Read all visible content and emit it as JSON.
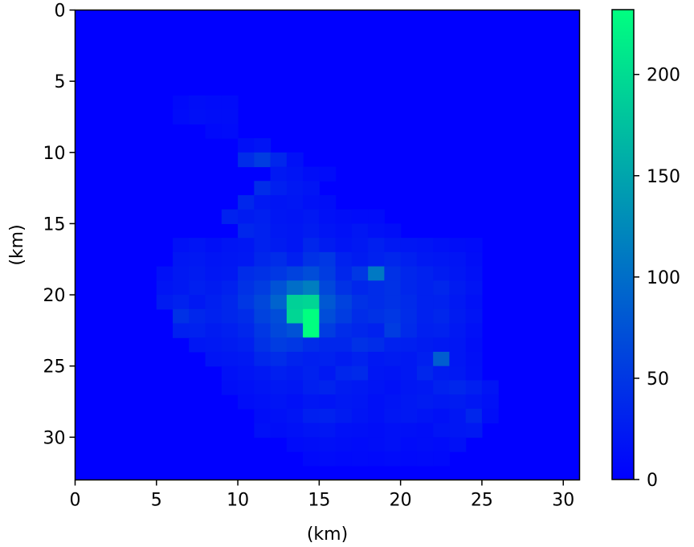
{
  "chart_data": {
    "type": "heatmap",
    "title": "",
    "xlabel": "(km)",
    "ylabel": "(km)",
    "xlim": [
      0,
      31
    ],
    "ylim": [
      33,
      0
    ],
    "x_ticks": [
      "0",
      "5",
      "10",
      "15",
      "20",
      "25",
      "30"
    ],
    "y_ticks": [
      "0",
      "5",
      "10",
      "15",
      "20",
      "25",
      "30"
    ],
    "grid_cols": 31,
    "grid_rows": 33,
    "colormap": "winter",
    "colormap_stops": [
      "#0000ff",
      "#00ff80"
    ],
    "colorbar": {
      "vmin": 0,
      "vmax": 232,
      "ticks": [
        "0",
        "50",
        "100",
        "150",
        "200"
      ]
    },
    "background_value": 0,
    "cells": [
      [
        6,
        6,
        8
      ],
      [
        6,
        7,
        10
      ],
      [
        7,
        6,
        12
      ],
      [
        7,
        7,
        14
      ],
      [
        8,
        6,
        10
      ],
      [
        8,
        7,
        12
      ],
      [
        9,
        6,
        10
      ],
      [
        9,
        7,
        12
      ],
      [
        8,
        8,
        8
      ],
      [
        9,
        8,
        10
      ],
      [
        10,
        9,
        14
      ],
      [
        11,
        9,
        18
      ],
      [
        10,
        10,
        40
      ],
      [
        11,
        10,
        55
      ],
      [
        12,
        10,
        35
      ],
      [
        13,
        10,
        15
      ],
      [
        12,
        11,
        22
      ],
      [
        13,
        11,
        18
      ],
      [
        14,
        11,
        12
      ],
      [
        15,
        11,
        10
      ],
      [
        11,
        12,
        40
      ],
      [
        12,
        12,
        28
      ],
      [
        13,
        12,
        22
      ],
      [
        14,
        12,
        18
      ],
      [
        10,
        13,
        35
      ],
      [
        11,
        13,
        22
      ],
      [
        12,
        13,
        18
      ],
      [
        13,
        13,
        20
      ],
      [
        14,
        13,
        15
      ],
      [
        15,
        13,
        12
      ],
      [
        9,
        14,
        30
      ],
      [
        10,
        14,
        25
      ],
      [
        11,
        14,
        28
      ],
      [
        12,
        14,
        20
      ],
      [
        13,
        14,
        18
      ],
      [
        14,
        14,
        22
      ],
      [
        15,
        14,
        15
      ],
      [
        16,
        14,
        12
      ],
      [
        17,
        14,
        10
      ],
      [
        18,
        14,
        10
      ],
      [
        10,
        15,
        35
      ],
      [
        11,
        15,
        30
      ],
      [
        12,
        15,
        22
      ],
      [
        13,
        15,
        20
      ],
      [
        14,
        15,
        25
      ],
      [
        15,
        15,
        18
      ],
      [
        16,
        15,
        15
      ],
      [
        17,
        15,
        20
      ],
      [
        18,
        15,
        15
      ],
      [
        19,
        15,
        12
      ],
      [
        6,
        16,
        15
      ],
      [
        7,
        16,
        18
      ],
      [
        8,
        16,
        14
      ],
      [
        9,
        16,
        18
      ],
      [
        10,
        16,
        20
      ],
      [
        11,
        16,
        30
      ],
      [
        12,
        16,
        25
      ],
      [
        13,
        16,
        20
      ],
      [
        14,
        16,
        35
      ],
      [
        15,
        16,
        25
      ],
      [
        16,
        16,
        18
      ],
      [
        17,
        16,
        22
      ],
      [
        18,
        16,
        28
      ],
      [
        19,
        16,
        22
      ],
      [
        20,
        16,
        20
      ],
      [
        21,
        16,
        18
      ],
      [
        22,
        16,
        15
      ],
      [
        23,
        16,
        12
      ],
      [
        24,
        16,
        10
      ],
      [
        6,
        17,
        20
      ],
      [
        7,
        17,
        22
      ],
      [
        8,
        17,
        18
      ],
      [
        9,
        17,
        20
      ],
      [
        10,
        17,
        22
      ],
      [
        11,
        17,
        35
      ],
      [
        12,
        17,
        40
      ],
      [
        13,
        17,
        28
      ],
      [
        14,
        17,
        45
      ],
      [
        15,
        17,
        50
      ],
      [
        16,
        17,
        30
      ],
      [
        17,
        17,
        25
      ],
      [
        18,
        17,
        30
      ],
      [
        19,
        17,
        35
      ],
      [
        20,
        17,
        28
      ],
      [
        21,
        17,
        22
      ],
      [
        22,
        17,
        20
      ],
      [
        23,
        17,
        18
      ],
      [
        24,
        17,
        12
      ],
      [
        5,
        18,
        15
      ],
      [
        6,
        18,
        22
      ],
      [
        7,
        18,
        25
      ],
      [
        8,
        18,
        20
      ],
      [
        9,
        18,
        22
      ],
      [
        10,
        18,
        40
      ],
      [
        11,
        18,
        45
      ],
      [
        12,
        18,
        50
      ],
      [
        13,
        18,
        60
      ],
      [
        14,
        18,
        70
      ],
      [
        15,
        18,
        55
      ],
      [
        16,
        18,
        35
      ],
      [
        17,
        18,
        50
      ],
      [
        18,
        18,
        110
      ],
      [
        19,
        18,
        45
      ],
      [
        20,
        18,
        35
      ],
      [
        21,
        18,
        30
      ],
      [
        22,
        18,
        25
      ],
      [
        23,
        18,
        20
      ],
      [
        24,
        18,
        15
      ],
      [
        5,
        19,
        18
      ],
      [
        6,
        19,
        22
      ],
      [
        7,
        19,
        28
      ],
      [
        8,
        19,
        25
      ],
      [
        9,
        19,
        30
      ],
      [
        10,
        19,
        45
      ],
      [
        11,
        19,
        55
      ],
      [
        12,
        19,
        75
      ],
      [
        13,
        19,
        100
      ],
      [
        14,
        19,
        115
      ],
      [
        15,
        19,
        65
      ],
      [
        16,
        19,
        45
      ],
      [
        17,
        19,
        35
      ],
      [
        18,
        19,
        40
      ],
      [
        19,
        19,
        45
      ],
      [
        20,
        19,
        35
      ],
      [
        21,
        19,
        30
      ],
      [
        22,
        19,
        35
      ],
      [
        23,
        19,
        25
      ],
      [
        24,
        19,
        18
      ],
      [
        5,
        20,
        25
      ],
      [
        6,
        20,
        30
      ],
      [
        7,
        20,
        22
      ],
      [
        8,
        20,
        28
      ],
      [
        9,
        20,
        35
      ],
      [
        10,
        20,
        50
      ],
      [
        11,
        20,
        65
      ],
      [
        12,
        20,
        90
      ],
      [
        13,
        20,
        190
      ],
      [
        14,
        20,
        195
      ],
      [
        15,
        20,
        80
      ],
      [
        16,
        20,
        60
      ],
      [
        17,
        20,
        45
      ],
      [
        18,
        20,
        40
      ],
      [
        19,
        20,
        45
      ],
      [
        20,
        20,
        38
      ],
      [
        21,
        20,
        30
      ],
      [
        22,
        20,
        30
      ],
      [
        23,
        20,
        22
      ],
      [
        24,
        20,
        15
      ],
      [
        6,
        21,
        45
      ],
      [
        7,
        21,
        35
      ],
      [
        8,
        21,
        30
      ],
      [
        9,
        21,
        35
      ],
      [
        10,
        21,
        40
      ],
      [
        11,
        21,
        60
      ],
      [
        12,
        21,
        70
      ],
      [
        13,
        21,
        195
      ],
      [
        14,
        21,
        232
      ],
      [
        15,
        21,
        70
      ],
      [
        16,
        21,
        55
      ],
      [
        17,
        21,
        40
      ],
      [
        18,
        21,
        45
      ],
      [
        19,
        21,
        50
      ],
      [
        20,
        21,
        40
      ],
      [
        21,
        21,
        30
      ],
      [
        22,
        21,
        35
      ],
      [
        23,
        21,
        25
      ],
      [
        24,
        21,
        18
      ],
      [
        6,
        22,
        28
      ],
      [
        7,
        22,
        30
      ],
      [
        8,
        22,
        25
      ],
      [
        9,
        22,
        28
      ],
      [
        10,
        22,
        35
      ],
      [
        11,
        22,
        50
      ],
      [
        12,
        22,
        65
      ],
      [
        13,
        22,
        75
      ],
      [
        14,
        22,
        232
      ],
      [
        15,
        22,
        55
      ],
      [
        16,
        22,
        40
      ],
      [
        17,
        22,
        35
      ],
      [
        18,
        22,
        30
      ],
      [
        19,
        22,
        55
      ],
      [
        20,
        22,
        38
      ],
      [
        21,
        22,
        28
      ],
      [
        22,
        22,
        30
      ],
      [
        23,
        22,
        22
      ],
      [
        24,
        22,
        15
      ],
      [
        7,
        23,
        20
      ],
      [
        8,
        23,
        22
      ],
      [
        9,
        23,
        25
      ],
      [
        10,
        23,
        28
      ],
      [
        11,
        23,
        45
      ],
      [
        12,
        23,
        55
      ],
      [
        13,
        23,
        50
      ],
      [
        14,
        23,
        40
      ],
      [
        15,
        23,
        35
      ],
      [
        16,
        23,
        35
      ],
      [
        17,
        23,
        45
      ],
      [
        18,
        23,
        40
      ],
      [
        19,
        23,
        30
      ],
      [
        20,
        23,
        28
      ],
      [
        21,
        23,
        25
      ],
      [
        22,
        23,
        22
      ],
      [
        23,
        23,
        20
      ],
      [
        24,
        23,
        12
      ],
      [
        8,
        24,
        18
      ],
      [
        9,
        24,
        20
      ],
      [
        10,
        24,
        22
      ],
      [
        11,
        24,
        35
      ],
      [
        12,
        24,
        40
      ],
      [
        13,
        24,
        32
      ],
      [
        14,
        24,
        28
      ],
      [
        15,
        24,
        30
      ],
      [
        16,
        24,
        25
      ],
      [
        17,
        24,
        30
      ],
      [
        18,
        24,
        22
      ],
      [
        19,
        24,
        25
      ],
      [
        20,
        24,
        22
      ],
      [
        21,
        24,
        28
      ],
      [
        22,
        24,
        85
      ],
      [
        23,
        24,
        20
      ],
      [
        24,
        24,
        14
      ],
      [
        9,
        25,
        15
      ],
      [
        10,
        25,
        18
      ],
      [
        11,
        25,
        22
      ],
      [
        12,
        25,
        28
      ],
      [
        13,
        25,
        25
      ],
      [
        14,
        25,
        30
      ],
      [
        15,
        25,
        22
      ],
      [
        16,
        25,
        35
      ],
      [
        17,
        25,
        38
      ],
      [
        18,
        25,
        20
      ],
      [
        19,
        25,
        18
      ],
      [
        20,
        25,
        22
      ],
      [
        21,
        25,
        35
      ],
      [
        22,
        25,
        25
      ],
      [
        23,
        25,
        22
      ],
      [
        24,
        25,
        15
      ],
      [
        9,
        26,
        12
      ],
      [
        10,
        26,
        15
      ],
      [
        11,
        26,
        18
      ],
      [
        12,
        26,
        22
      ],
      [
        13,
        26,
        20
      ],
      [
        14,
        26,
        28
      ],
      [
        15,
        26,
        32
      ],
      [
        16,
        26,
        25
      ],
      [
        17,
        26,
        22
      ],
      [
        18,
        26,
        18
      ],
      [
        19,
        26,
        15
      ],
      [
        20,
        26,
        20
      ],
      [
        21,
        26,
        22
      ],
      [
        22,
        26,
        30
      ],
      [
        23,
        26,
        35
      ],
      [
        24,
        26,
        28
      ],
      [
        25,
        26,
        18
      ],
      [
        10,
        27,
        12
      ],
      [
        11,
        27,
        15
      ],
      [
        12,
        27,
        18
      ],
      [
        13,
        27,
        15
      ],
      [
        14,
        27,
        20
      ],
      [
        15,
        27,
        18
      ],
      [
        16,
        27,
        22
      ],
      [
        17,
        27,
        20
      ],
      [
        18,
        27,
        15
      ],
      [
        19,
        27,
        18
      ],
      [
        20,
        27,
        22
      ],
      [
        21,
        27,
        25
      ],
      [
        22,
        27,
        22
      ],
      [
        23,
        27,
        25
      ],
      [
        24,
        27,
        20
      ],
      [
        25,
        27,
        15
      ],
      [
        11,
        28,
        12
      ],
      [
        12,
        28,
        15
      ],
      [
        13,
        28,
        18
      ],
      [
        14,
        28,
        28
      ],
      [
        15,
        28,
        30
      ],
      [
        16,
        28,
        25
      ],
      [
        17,
        28,
        18
      ],
      [
        18,
        28,
        15
      ],
      [
        19,
        28,
        20
      ],
      [
        20,
        28,
        22
      ],
      [
        21,
        28,
        18
      ],
      [
        22,
        28,
        15
      ],
      [
        23,
        28,
        20
      ],
      [
        24,
        28,
        35
      ],
      [
        25,
        28,
        12
      ],
      [
        11,
        29,
        15
      ],
      [
        12,
        29,
        12
      ],
      [
        13,
        29,
        15
      ],
      [
        14,
        29,
        18
      ],
      [
        15,
        29,
        20
      ],
      [
        16,
        29,
        15
      ],
      [
        17,
        29,
        14
      ],
      [
        18,
        29,
        12
      ],
      [
        19,
        29,
        15
      ],
      [
        20,
        29,
        14
      ],
      [
        21,
        29,
        12
      ],
      [
        22,
        29,
        18
      ],
      [
        23,
        29,
        20
      ],
      [
        24,
        29,
        22
      ],
      [
        13,
        30,
        10
      ],
      [
        14,
        30,
        12
      ],
      [
        15,
        30,
        14
      ],
      [
        16,
        30,
        12
      ],
      [
        17,
        30,
        10
      ],
      [
        18,
        30,
        12
      ],
      [
        19,
        30,
        15
      ],
      [
        20,
        30,
        10
      ],
      [
        21,
        30,
        12
      ],
      [
        22,
        30,
        10
      ],
      [
        23,
        30,
        15
      ],
      [
        14,
        31,
        8
      ],
      [
        15,
        31,
        10
      ],
      [
        16,
        31,
        8
      ],
      [
        17,
        31,
        9
      ],
      [
        18,
        31,
        8
      ],
      [
        19,
        31,
        10
      ],
      [
        20,
        31,
        8
      ],
      [
        21,
        31,
        9
      ],
      [
        22,
        31,
        8
      ]
    ]
  }
}
